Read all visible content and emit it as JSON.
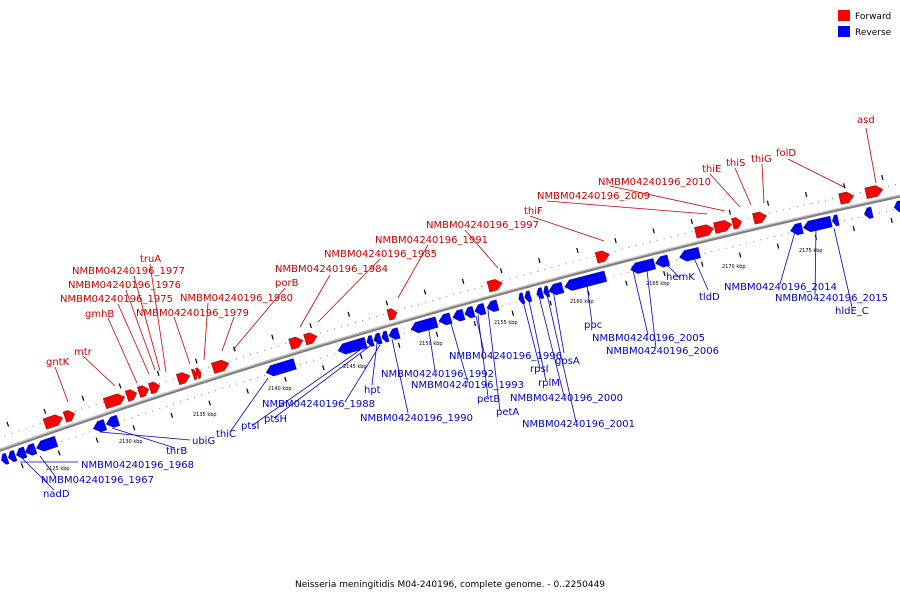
{
  "legend": {
    "forward": {
      "label": "Forward",
      "color": "#ff0000"
    },
    "reverse": {
      "label": "Reverse",
      "color": "#0000ff"
    }
  },
  "caption": "Neisseria meningitidis M04-240196, complete genome. - 0..2250449",
  "scale_labels": [
    "2125 kbp",
    "2130 kbp",
    "2135 kbp",
    "2140 kbp",
    "2145 kbp",
    "2150 kbp",
    "2155 kbp",
    "2160 kbp",
    "2165 kbp",
    "2170 kbp",
    "2175 kbp"
  ],
  "forward_genes": [
    "gntK",
    "mtr",
    "gmhB",
    "NMBM04240196_1975",
    "NMBM04240196_1976",
    "NMBM04240196_1977",
    "truA",
    "NMBM04240196_1979",
    "NMBM04240196_1980",
    "porB",
    "NMBM04240196_1984",
    "NMBM04240196_1985",
    "NMBM04240196_1991",
    "NMBM04240196_1997",
    "thiF",
    "NMBM04240196_2009",
    "NMBM04240196_2010",
    "thiE",
    "thiS",
    "thiG",
    "folD",
    "asd"
  ],
  "reverse_genes": [
    "NMBM04240196_1968",
    "NMBM04240196_1967",
    "nadD",
    "thrB",
    "ubiG",
    "thiC",
    "ptsI",
    "ptsH",
    "NMBM04240196_1988",
    "hpt",
    "NMBM04240196_1990",
    "NMBM04240196_1992",
    "NMBM04240196_1993",
    "NMBM04240196_1996",
    "petB",
    "petA",
    "rpsI",
    "rplM",
    "NMBM04240196_2000",
    "NMBM04240196_2001",
    "gpsA",
    "ppc",
    "NMBM04240196_2005",
    "NMBM04240196_2006",
    "hemK",
    "tldD",
    "NMBM04240196_2014",
    "NMBM04240196_2015",
    "hldE_C"
  ]
}
